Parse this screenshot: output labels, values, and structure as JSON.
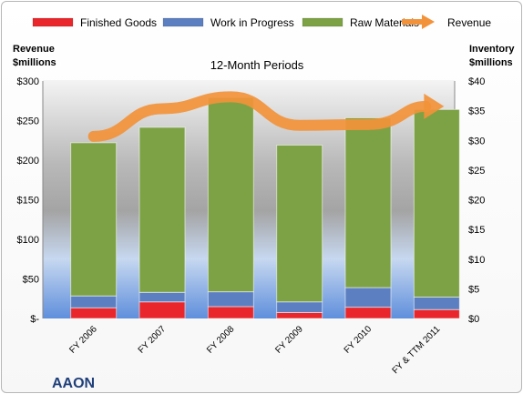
{
  "chart_data": {
    "type": "bar",
    "stacked": true,
    "subtitle": "12-Month Periods",
    "company": "AAON",
    "left_axis_label": [
      "Revenue",
      "$millions"
    ],
    "right_axis_label": [
      "Inventory",
      "$millions"
    ],
    "categories": [
      "FY 2006",
      "FY 2007",
      "FY 2008",
      "FY 2009",
      "FY 2010",
      "FY & TTM 2011"
    ],
    "inventory_series": [
      {
        "name": "Finished Goods",
        "color": "#e8262b",
        "values": [
          1.8,
          2.8,
          2.0,
          1.0,
          1.9,
          1.5
        ]
      },
      {
        "name": "Work in Progress",
        "color": "#5b7fc1",
        "values": [
          2.0,
          1.6,
          2.5,
          1.8,
          3.3,
          2.1
        ]
      },
      {
        "name": "Raw Materials",
        "color": "#7da245",
        "values": [
          25.8,
          27.8,
          32.7,
          26.4,
          28.6,
          31.6
        ]
      }
    ],
    "revenue_series": {
      "name": "Revenue",
      "color": "#f2923a",
      "values": [
        230,
        265,
        280,
        244,
        245,
        268
      ]
    },
    "left_axis": {
      "ylim": [
        0,
        300
      ],
      "ticks": [
        "$-",
        "$50",
        "$100",
        "$150",
        "$200",
        "$250",
        "$300"
      ]
    },
    "right_axis": {
      "ylim": [
        0,
        40
      ],
      "ticks": [
        "$0",
        "$5",
        "$10",
        "$15",
        "$20",
        "$25",
        "$30",
        "$35",
        "$40"
      ]
    },
    "legend_position": "top",
    "grid": false
  }
}
